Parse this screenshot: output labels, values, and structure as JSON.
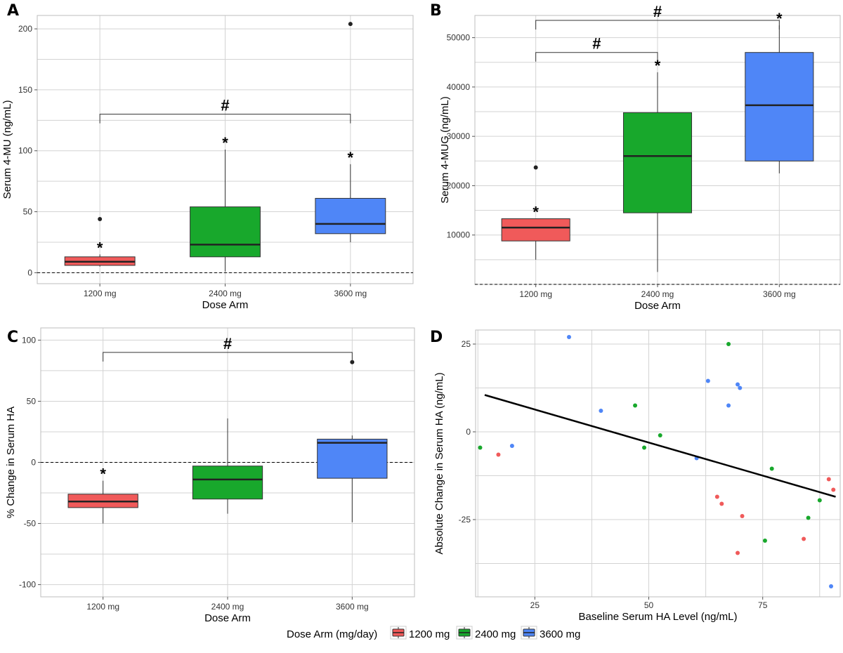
{
  "colors": {
    "1200 mg": "#f05a5a",
    "2400 mg": "#18a82c",
    "3600 mg": "#4f86f7"
  },
  "legend": {
    "title": "Dose Arm (mg/day)",
    "items": [
      "1200 mg",
      "2400 mg",
      "3600 mg"
    ],
    "placement": "bottom"
  },
  "chart_data": [
    {
      "panel": "A",
      "type": "box",
      "xlabel": "Dose Arm",
      "ylabel": "Serum 4-MU (ng/mL)",
      "categories": [
        "1200 mg",
        "2400 mg",
        "3600 mg"
      ],
      "yticks": [
        0,
        50,
        100,
        150,
        200
      ],
      "ylim": [
        -9,
        211
      ],
      "grid": true,
      "ref_line": 0,
      "boxes": [
        {
          "min": 5,
          "q1": 6,
          "median": 9,
          "q3": 13,
          "max": 15,
          "outliers": [
            44
          ],
          "star": 15
        },
        {
          "min": 1,
          "q1": 13,
          "median": 23,
          "q3": 54,
          "max": 101,
          "outliers": [],
          "star": 101
        },
        {
          "min": 25,
          "q1": 32,
          "median": 40,
          "q3": 61,
          "max": 89,
          "outliers": [
            204
          ],
          "star": 89
        }
      ],
      "brackets": [
        {
          "from": "1200 mg",
          "to": "3600 mg",
          "y": 130,
          "label": "#"
        }
      ]
    },
    {
      "panel": "B",
      "type": "box",
      "xlabel": "Dose Arm",
      "ylabel": "Serum 4-MUG (ng/mL)",
      "categories": [
        "1200 mg",
        "2400 mg",
        "3600 mg"
      ],
      "yticks": [
        10000,
        20000,
        30000,
        40000,
        50000
      ],
      "ylim": [
        0,
        54500
      ],
      "grid": true,
      "ref_line": 0,
      "boxes": [
        {
          "min": 5000,
          "q1": 8800,
          "median": 11500,
          "q3": 13300,
          "max": 13300,
          "outliers": [
            23700
          ],
          "star": 13300
        },
        {
          "min": 2500,
          "q1": 14500,
          "median": 26000,
          "q3": 34800,
          "max": 43000,
          "outliers": [],
          "star": 43000
        },
        {
          "min": 22500,
          "q1": 25000,
          "median": 36300,
          "q3": 47000,
          "max": 52500,
          "outliers": [],
          "star": 52500
        }
      ],
      "brackets": [
        {
          "from": "1200 mg",
          "to": "2400 mg",
          "y": 47000,
          "label": "#"
        },
        {
          "from": "1200 mg",
          "to": "3600 mg",
          "y": 53500,
          "label": "#"
        }
      ]
    },
    {
      "panel": "C",
      "type": "box",
      "xlabel": "Dose Arm",
      "ylabel": "% Change in Serum HA",
      "categories": [
        "1200 mg",
        "2400 mg",
        "3600 mg"
      ],
      "yticks": [
        -100,
        -50,
        0,
        50,
        100
      ],
      "ylim": [
        -110,
        110
      ],
      "grid": true,
      "ref_line": 0,
      "boxes": [
        {
          "min": -50,
          "q1": -37,
          "median": -32,
          "q3": -26,
          "max": -15,
          "outliers": [],
          "star": -15
        },
        {
          "min": -42,
          "q1": -30,
          "median": -14,
          "q3": -3,
          "max": 36,
          "outliers": [],
          "star": null
        },
        {
          "min": -49,
          "q1": -13,
          "median": 16,
          "q3": 19,
          "max": 22,
          "outliers": [
            82
          ],
          "star": null
        }
      ],
      "brackets": [
        {
          "from": "1200 mg",
          "to": "3600 mg",
          "y": 90,
          "label": "#"
        }
      ]
    },
    {
      "panel": "D",
      "type": "scatter",
      "xlabel": "Baseline Serum HA Level (ng/mL)",
      "ylabel": "Absolute Change in Serum HA (ng/mL)",
      "xticks": [
        25,
        50,
        75
      ],
      "yticks": [
        -25,
        0,
        25
      ],
      "xlim": [
        12,
        92
      ],
      "ylim": [
        -47,
        29
      ],
      "grid": true,
      "trendline": {
        "x1": 14,
        "y1": 10.5,
        "x2": 91,
        "y2": -18.5
      },
      "series": [
        {
          "name": "1200 mg",
          "points": [
            [
              17,
              -6.5
            ],
            [
              65,
              -18.5
            ],
            [
              66,
              -20.5
            ],
            [
              69.5,
              -34.5
            ],
            [
              70.5,
              -24
            ],
            [
              84,
              -30.5
            ],
            [
              89.5,
              -13.5
            ],
            [
              90.5,
              -16.5
            ]
          ]
        },
        {
          "name": "2400 mg",
          "points": [
            [
              13,
              -4.5
            ],
            [
              47,
              7.5
            ],
            [
              49,
              -4.5
            ],
            [
              52.5,
              -1
            ],
            [
              67.5,
              25
            ],
            [
              75.5,
              -31
            ],
            [
              77,
              -10.5
            ],
            [
              85,
              -24.5
            ],
            [
              87.5,
              -19.5
            ]
          ]
        },
        {
          "name": "3600 mg",
          "points": [
            [
              20,
              -4
            ],
            [
              32.5,
              27
            ],
            [
              39.5,
              6
            ],
            [
              60.5,
              -7.5
            ],
            [
              63,
              14.5
            ],
            [
              67.5,
              7.5
            ],
            [
              69.5,
              13.5
            ],
            [
              70,
              12.5
            ],
            [
              90,
              -44
            ]
          ]
        }
      ]
    }
  ]
}
